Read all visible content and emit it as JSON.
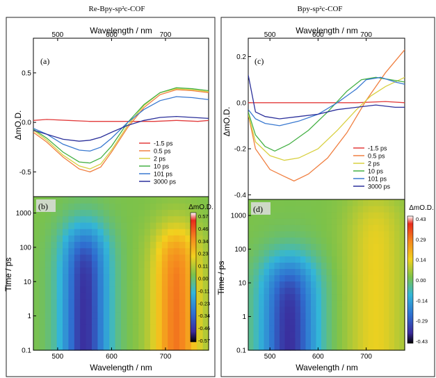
{
  "chart_data": [
    {
      "type": "line",
      "panel_label": "(a)",
      "title": "Re-Bpy-sp²c-COF",
      "xlabel": "Wavelength / nm",
      "ylabel": "ΔmO.D.",
      "xlim": [
        455,
        780
      ],
      "ylim": [
        -0.75,
        0.85
      ],
      "xticks": [
        500,
        600,
        700
      ],
      "yticks": [
        -0.5,
        0.0,
        0.5
      ],
      "ytick_labels": [
        "-0.5",
        "0.0",
        "0.5"
      ],
      "legend_position": "lower-right",
      "series": [
        {
          "name": "-1.5 ps",
          "color": "#e23b3b",
          "x": [
            455,
            480,
            520,
            560,
            600,
            640,
            680,
            720,
            760,
            780
          ],
          "y": [
            0.02,
            0.03,
            0.02,
            0.01,
            0.01,
            0.01,
            0.01,
            0.02,
            0.01,
            0.02
          ]
        },
        {
          "name": "0.5 ps",
          "color": "#f07f40",
          "x": [
            455,
            480,
            510,
            540,
            560,
            580,
            600,
            630,
            660,
            690,
            720,
            750,
            780
          ],
          "y": [
            -0.1,
            -0.2,
            -0.35,
            -0.47,
            -0.5,
            -0.45,
            -0.3,
            -0.05,
            0.15,
            0.28,
            0.33,
            0.32,
            0.3
          ]
        },
        {
          "name": "2 ps",
          "color": "#d8d040",
          "x": [
            455,
            480,
            510,
            540,
            560,
            580,
            600,
            630,
            660,
            690,
            720,
            750,
            780
          ],
          "y": [
            -0.08,
            -0.18,
            -0.33,
            -0.44,
            -0.47,
            -0.42,
            -0.28,
            -0.03,
            0.17,
            0.3,
            0.34,
            0.33,
            0.31
          ]
        },
        {
          "name": "10 ps",
          "color": "#44b044",
          "x": [
            455,
            480,
            510,
            540,
            560,
            580,
            600,
            630,
            660,
            690,
            720,
            750,
            780
          ],
          "y": [
            -0.07,
            -0.16,
            -0.3,
            -0.4,
            -0.41,
            -0.36,
            -0.24,
            0.0,
            0.18,
            0.3,
            0.35,
            0.34,
            0.32
          ]
        },
        {
          "name": "101 ps",
          "color": "#3878d0",
          "x": [
            455,
            480,
            510,
            540,
            560,
            580,
            600,
            630,
            660,
            690,
            720,
            750,
            780
          ],
          "y": [
            -0.06,
            -0.12,
            -0.22,
            -0.28,
            -0.29,
            -0.25,
            -0.16,
            0.0,
            0.13,
            0.22,
            0.26,
            0.25,
            0.23
          ]
        },
        {
          "name": "3000 ps",
          "color": "#2a2f9a",
          "x": [
            455,
            480,
            510,
            540,
            560,
            580,
            600,
            630,
            660,
            690,
            720,
            750,
            780
          ],
          "y": [
            -0.08,
            -0.12,
            -0.17,
            -0.19,
            -0.18,
            -0.15,
            -0.1,
            -0.03,
            0.02,
            0.05,
            0.06,
            0.05,
            0.04
          ]
        }
      ]
    },
    {
      "type": "heatmap",
      "panel_label": "(b)",
      "xlabel": "Wavelength / nm",
      "ylabel": "Time / ps",
      "xlim": [
        455,
        780
      ],
      "xticks": [
        500,
        600,
        700
      ],
      "ylim": [
        0.1,
        3000
      ],
      "yscale": "log",
      "ytick_labels": [
        "0.1",
        "1",
        "10",
        "100",
        "1000"
      ],
      "colorbar_label": "ΔmO.D.",
      "colorbar_ticks": [
        "0.57",
        "0.46",
        "0.34",
        "0.23",
        "0.11",
        "0.00",
        "-0.11",
        "-0.23",
        "-0.34",
        "-0.46",
        "-0.57"
      ],
      "features": [
        {
          "wavelength_center": 550,
          "wavelength_width": 45,
          "value": -0.5,
          "decays_above_ps": 300
        },
        {
          "wavelength_center": 720,
          "wavelength_width": 45,
          "value": 0.4,
          "decays_above_ps": 300
        }
      ]
    },
    {
      "type": "line",
      "panel_label": "(c)",
      "title": "Bpy-sp²c-COF",
      "xlabel": "Wavelength / nm",
      "ylabel": "ΔmO.D.",
      "xlim": [
        455,
        780
      ],
      "ylim": [
        -0.42,
        0.28
      ],
      "xticks": [
        500,
        600,
        700
      ],
      "yticks": [
        -0.4,
        -0.2,
        0.0,
        0.2
      ],
      "ytick_labels": [
        "-0.4",
        "-0.2",
        "0.0",
        "0.2"
      ],
      "legend_position": "lower-right",
      "series": [
        {
          "name": "-1.5 ps",
          "color": "#e23b3b",
          "x": [
            455,
            500,
            560,
            620,
            680,
            740,
            780
          ],
          "y": [
            0.0,
            0.0,
            0.0,
            0.0,
            0.0,
            0.005,
            0.0
          ]
        },
        {
          "name": "0.5 ps",
          "color": "#f07f40",
          "x": [
            455,
            470,
            500,
            530,
            550,
            580,
            620,
            660,
            700,
            740,
            780
          ],
          "y": [
            -0.05,
            -0.2,
            -0.29,
            -0.32,
            -0.34,
            -0.31,
            -0.24,
            -0.13,
            0.01,
            0.13,
            0.23
          ]
        },
        {
          "name": "2 ps",
          "color": "#d8d040",
          "x": [
            455,
            470,
            500,
            530,
            560,
            600,
            640,
            680,
            710,
            740,
            780
          ],
          "y": [
            -0.05,
            -0.17,
            -0.23,
            -0.25,
            -0.24,
            -0.2,
            -0.12,
            -0.03,
            0.03,
            0.07,
            0.11
          ]
        },
        {
          "name": "10 ps",
          "color": "#44b044",
          "x": [
            455,
            470,
            490,
            510,
            540,
            580,
            620,
            660,
            690,
            720,
            750,
            780
          ],
          "y": [
            -0.04,
            -0.14,
            -0.19,
            -0.21,
            -0.18,
            -0.12,
            -0.04,
            0.05,
            0.1,
            0.11,
            0.1,
            0.09
          ]
        },
        {
          "name": "101 ps",
          "color": "#3878d0",
          "x": [
            455,
            470,
            490,
            520,
            560,
            600,
            640,
            680,
            700,
            730,
            760,
            780
          ],
          "y": [
            -0.03,
            -0.07,
            -0.09,
            -0.1,
            -0.08,
            -0.05,
            0.0,
            0.06,
            0.1,
            0.11,
            0.09,
            0.08
          ]
        },
        {
          "name": "3000 ps",
          "color": "#2a2f9a",
          "x": [
            455,
            470,
            490,
            520,
            560,
            600,
            640,
            680,
            720,
            760,
            780
          ],
          "y": [
            0.12,
            -0.04,
            -0.06,
            -0.07,
            -0.06,
            -0.05,
            -0.03,
            -0.02,
            -0.01,
            -0.02,
            -0.02
          ]
        }
      ]
    },
    {
      "type": "heatmap",
      "panel_label": "(d)",
      "xlabel": "Wavelength / nm",
      "ylabel": "Time / ps",
      "xlim": [
        455,
        780
      ],
      "xticks": [
        500,
        600,
        700
      ],
      "ylim": [
        0.1,
        3000
      ],
      "yscale": "log",
      "ytick_labels": [
        "0.1",
        "1",
        "10",
        "100",
        "1000"
      ],
      "colorbar_label": "ΔmO.D.",
      "colorbar_ticks": [
        "0.43",
        "0.29",
        "0.14",
        "0.00",
        "-0.14",
        "-0.29",
        "-0.43"
      ],
      "features": [
        {
          "wavelength_center": 540,
          "wavelength_width": 60,
          "value": -0.38,
          "decays_above_ps": 40
        },
        {
          "wavelength_center": 720,
          "wavelength_width": 60,
          "value": 0.14,
          "decays_above_ps": 3000
        }
      ]
    }
  ]
}
